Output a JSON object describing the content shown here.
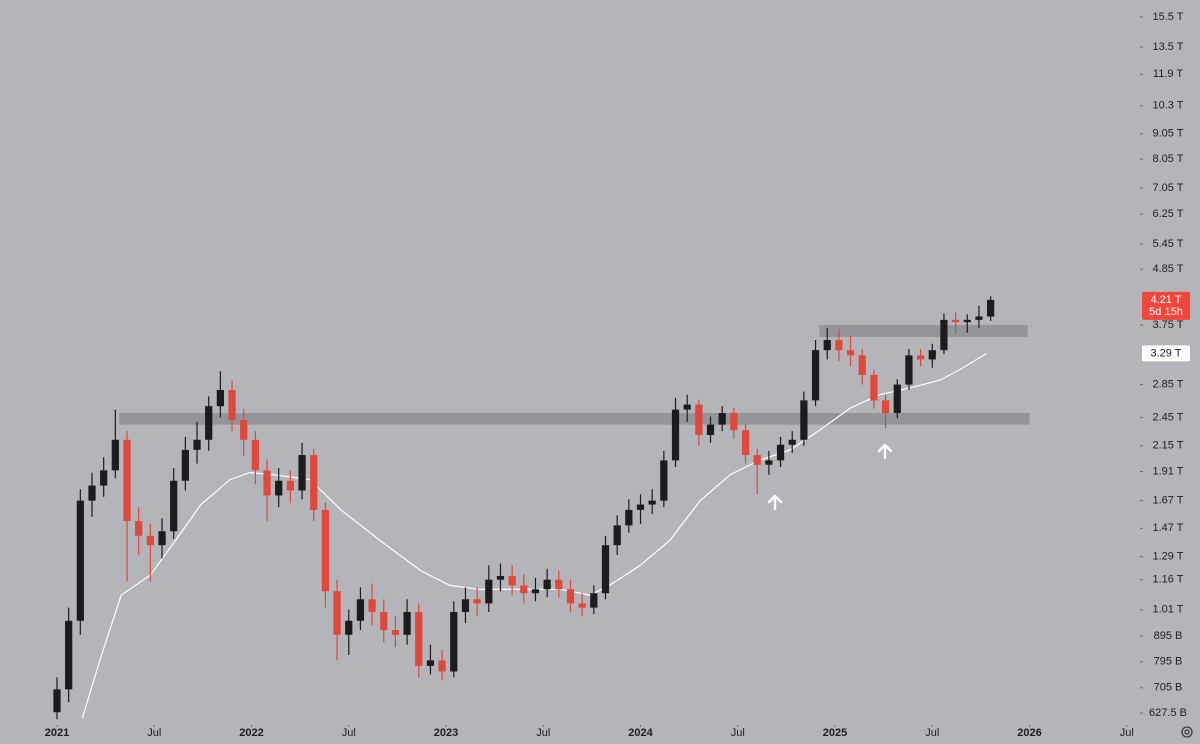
{
  "chart_data": {
    "type": "candlestick",
    "log_scale": true,
    "background": "#b3b5ba",
    "up_color": "#1c1c1f",
    "down_color": "#e0483b",
    "x": [
      2021,
      2021.06,
      2021.12,
      2021.18,
      2021.24,
      2021.3,
      2021.36,
      2021.42,
      2021.48,
      2021.54,
      2021.6,
      2021.66,
      2021.72,
      2021.78,
      2021.84,
      2021.9,
      2021.96,
      2022.02,
      2022.08,
      2022.14,
      2022.2,
      2022.26,
      2022.32,
      2022.38,
      2022.44,
      2022.5,
      2022.56,
      2022.62,
      2022.68,
      2022.74,
      2022.8,
      2022.86,
      2022.92,
      2022.98,
      2023.04,
      2023.1,
      2023.16,
      2023.22,
      2023.28,
      2023.34,
      2023.4,
      2023.46,
      2023.52,
      2023.58,
      2023.64,
      2023.7,
      2023.76,
      2023.82,
      2023.88,
      2023.94,
      2024,
      2024.06,
      2024.12,
      2024.18,
      2024.24,
      2024.3,
      2024.36,
      2024.42,
      2024.48,
      2024.54,
      2024.6,
      2024.66,
      2024.72,
      2024.78,
      2024.84,
      2024.9,
      2024.96,
      2025.02,
      2025.08,
      2025.14,
      2025.2,
      2025.26,
      2025.32,
      2025.38,
      2025.44,
      2025.5,
      2025.56,
      2025.62,
      2025.68,
      2025.74,
      2025.8
    ],
    "open": [
      0.63,
      0.7,
      0.96,
      1.67,
      1.79,
      1.92,
      2.21,
      1.52,
      1.42,
      1.36,
      1.45,
      1.83,
      2.11,
      2.21,
      2.58,
      2.78,
      2.42,
      2.21,
      1.92,
      1.71,
      1.83,
      1.75,
      2.06,
      1.6,
      1.1,
      0.9,
      0.96,
      1.06,
      1.0,
      0.92,
      0.9,
      1.0,
      0.78,
      0.8,
      0.76,
      1.0,
      1.06,
      1.04,
      1.16,
      1.18,
      1.13,
      1.09,
      1.11,
      1.16,
      1.11,
      1.04,
      1.02,
      1.09,
      1.36,
      1.49,
      1.6,
      1.64,
      1.67,
      2.01,
      2.54,
      2.6,
      2.26,
      2.37,
      2.5,
      2.31,
      2.06,
      1.97,
      2.01,
      2.16,
      2.21,
      2.65,
      3.34,
      3.5,
      3.34,
      3.26,
      2.98,
      2.65,
      2.5,
      2.85,
      3.26,
      3.2,
      3.34,
      3.84,
      3.8,
      3.84,
      3.9
    ],
    "high": [
      0.74,
      1.02,
      1.76,
      1.9,
      2.04,
      2.54,
      2.3,
      1.62,
      1.5,
      1.54,
      1.94,
      2.24,
      2.4,
      2.7,
      3.03,
      2.9,
      2.55,
      2.3,
      2.02,
      1.94,
      1.92,
      2.18,
      2.12,
      1.66,
      1.16,
      1.01,
      1.12,
      1.14,
      1.06,
      0.98,
      1.06,
      1.04,
      0.86,
      0.84,
      1.05,
      1.12,
      1.12,
      1.24,
      1.25,
      1.24,
      1.19,
      1.17,
      1.22,
      1.21,
      1.16,
      1.09,
      1.13,
      1.42,
      1.56,
      1.68,
      1.72,
      1.76,
      2.1,
      2.68,
      2.72,
      2.66,
      2.46,
      2.58,
      2.56,
      2.38,
      2.12,
      2.1,
      2.24,
      2.3,
      2.76,
      3.5,
      3.7,
      3.68,
      3.56,
      3.36,
      3.05,
      2.72,
      2.92,
      3.36,
      3.36,
      3.44,
      3.96,
      3.98,
      3.94,
      4.1,
      4.28
    ],
    "low": [
      0.61,
      0.66,
      0.9,
      1.55,
      1.7,
      1.85,
      1.15,
      1.3,
      1.15,
      1.28,
      1.4,
      1.75,
      1.98,
      2.1,
      2.45,
      2.3,
      2.05,
      1.8,
      1.52,
      1.62,
      1.65,
      1.68,
      1.52,
      1.02,
      0.8,
      0.82,
      0.92,
      0.94,
      0.87,
      0.85,
      0.86,
      0.74,
      0.75,
      0.73,
      0.74,
      0.95,
      0.98,
      1.0,
      1.1,
      1.08,
      1.04,
      1.05,
      1.07,
      1.07,
      1.0,
      0.98,
      0.99,
      1.06,
      1.3,
      1.44,
      1.5,
      1.57,
      1.62,
      1.95,
      2.4,
      2.15,
      2.18,
      2.3,
      2.22,
      1.98,
      1.72,
      1.88,
      1.95,
      2.08,
      2.15,
      2.58,
      3.2,
      3.18,
      3.1,
      2.85,
      2.55,
      2.33,
      2.44,
      2.78,
      3.1,
      3.08,
      3.28,
      3.6,
      3.62,
      3.7,
      3.82
    ],
    "close": [
      0.7,
      0.96,
      1.67,
      1.79,
      1.92,
      2.21,
      1.52,
      1.42,
      1.36,
      1.45,
      1.83,
      2.11,
      2.21,
      2.58,
      2.78,
      2.42,
      2.21,
      1.92,
      1.71,
      1.83,
      1.75,
      2.06,
      1.6,
      1.1,
      0.9,
      0.96,
      1.06,
      1.0,
      0.92,
      0.9,
      1.0,
      0.78,
      0.8,
      0.76,
      1.0,
      1.06,
      1.04,
      1.16,
      1.18,
      1.13,
      1.09,
      1.11,
      1.16,
      1.11,
      1.04,
      1.02,
      1.09,
      1.36,
      1.49,
      1.6,
      1.64,
      1.67,
      2.01,
      2.54,
      2.6,
      2.26,
      2.37,
      2.5,
      2.31,
      2.06,
      1.97,
      2.01,
      2.16,
      2.21,
      2.65,
      3.34,
      3.5,
      3.34,
      3.26,
      2.98,
      2.65,
      2.5,
      2.85,
      3.26,
      3.2,
      3.34,
      3.84,
      3.8,
      3.84,
      3.9,
      4.21
    ],
    "ma": {
      "color": "#ffffff",
      "x": [
        2021.13,
        2021.22,
        2021.33,
        2021.48,
        2021.61,
        2021.74,
        2021.89,
        2021.99,
        2022.12,
        2022.3,
        2022.46,
        2022.66,
        2022.87,
        2023.02,
        2023.17,
        2023.38,
        2023.59,
        2023.74,
        2023.84,
        2024,
        2024.15,
        2024.31,
        2024.46,
        2024.61,
        2024.77,
        2024.92,
        2025.08,
        2025.23,
        2025.39,
        2025.54,
        2025.64,
        2025.78
      ],
      "values": [
        0.613,
        0.8,
        1.08,
        1.185,
        1.39,
        1.64,
        1.84,
        1.9,
        1.88,
        1.84,
        1.6,
        1.39,
        1.21,
        1.13,
        1.11,
        1.11,
        1.11,
        1.08,
        1.13,
        1.24,
        1.39,
        1.675,
        1.88,
        2.01,
        2.11,
        2.31,
        2.56,
        2.72,
        2.81,
        2.91,
        3.05,
        3.29
      ]
    },
    "zones": [
      {
        "xlim": [
          2021.32,
          2026.0
        ],
        "ylim": [
          2.37,
          2.5
        ],
        "color": "#8d8f95"
      },
      {
        "xlim": [
          2024.92,
          2025.99
        ],
        "ylim": [
          3.55,
          3.75
        ],
        "color": "#8d8f95"
      }
    ],
    "last_price": {
      "value": 4.21,
      "label": "4.21 T",
      "countdown": "5d 15h",
      "color": "#f0473a"
    },
    "ma_label": {
      "value": 3.29,
      "label": "3.29 T"
    },
    "xlim": [
      2020.707,
      2026.568
    ],
    "ylim": [
      0.594,
      16.76
    ],
    "xticks": [
      {
        "value": 2021,
        "label": "2021"
      },
      {
        "value": 2021.5,
        "label": "Jul"
      },
      {
        "value": 2022,
        "label": "2022"
      },
      {
        "value": 2022.5,
        "label": "Jul"
      },
      {
        "value": 2023,
        "label": "2023"
      },
      {
        "value": 2023.5,
        "label": "Jul"
      },
      {
        "value": 2024,
        "label": "2024"
      },
      {
        "value": 2024.5,
        "label": "Jul"
      },
      {
        "value": 2025,
        "label": "2025"
      },
      {
        "value": 2025.5,
        "label": "Jul"
      },
      {
        "value": 2026,
        "label": "2026"
      },
      {
        "value": 2026.5,
        "label": "Jul"
      }
    ],
    "yticks": [
      {
        "value": 15.5,
        "label": "15.5 T"
      },
      {
        "value": 13.5,
        "label": "13.5 T"
      },
      {
        "value": 11.9,
        "label": "11.9 T"
      },
      {
        "value": 10.3,
        "label": "10.3 T"
      },
      {
        "value": 9.05,
        "label": "9.05 T"
      },
      {
        "value": 8.05,
        "label": "8.05 T"
      },
      {
        "value": 7.05,
        "label": "7.05 T"
      },
      {
        "value": 6.25,
        "label": "6.25 T"
      },
      {
        "value": 5.45,
        "label": "5.45 T"
      },
      {
        "value": 4.85,
        "label": "4.85 T"
      },
      {
        "value": 3.75,
        "label": "3.75 T"
      },
      {
        "value": 2.85,
        "label": "2.85 T"
      },
      {
        "value": 2.45,
        "label": "2.45 T"
      },
      {
        "value": 2.15,
        "label": "2.15 T"
      },
      {
        "value": 1.91,
        "label": "1.91 T"
      },
      {
        "value": 1.67,
        "label": "1.67 T"
      },
      {
        "value": 1.47,
        "label": "1.47 T"
      },
      {
        "value": 1.29,
        "label": "1.29 T"
      },
      {
        "value": 1.16,
        "label": "1.16 T"
      },
      {
        "value": 1.01,
        "label": "1.01 T"
      },
      {
        "value": 0.895,
        "label": "895 B"
      },
      {
        "value": 0.795,
        "label": "795 B"
      },
      {
        "value": 0.705,
        "label": "705 B"
      },
      {
        "value": 0.6275,
        "label": "627.5 B"
      }
    ]
  }
}
